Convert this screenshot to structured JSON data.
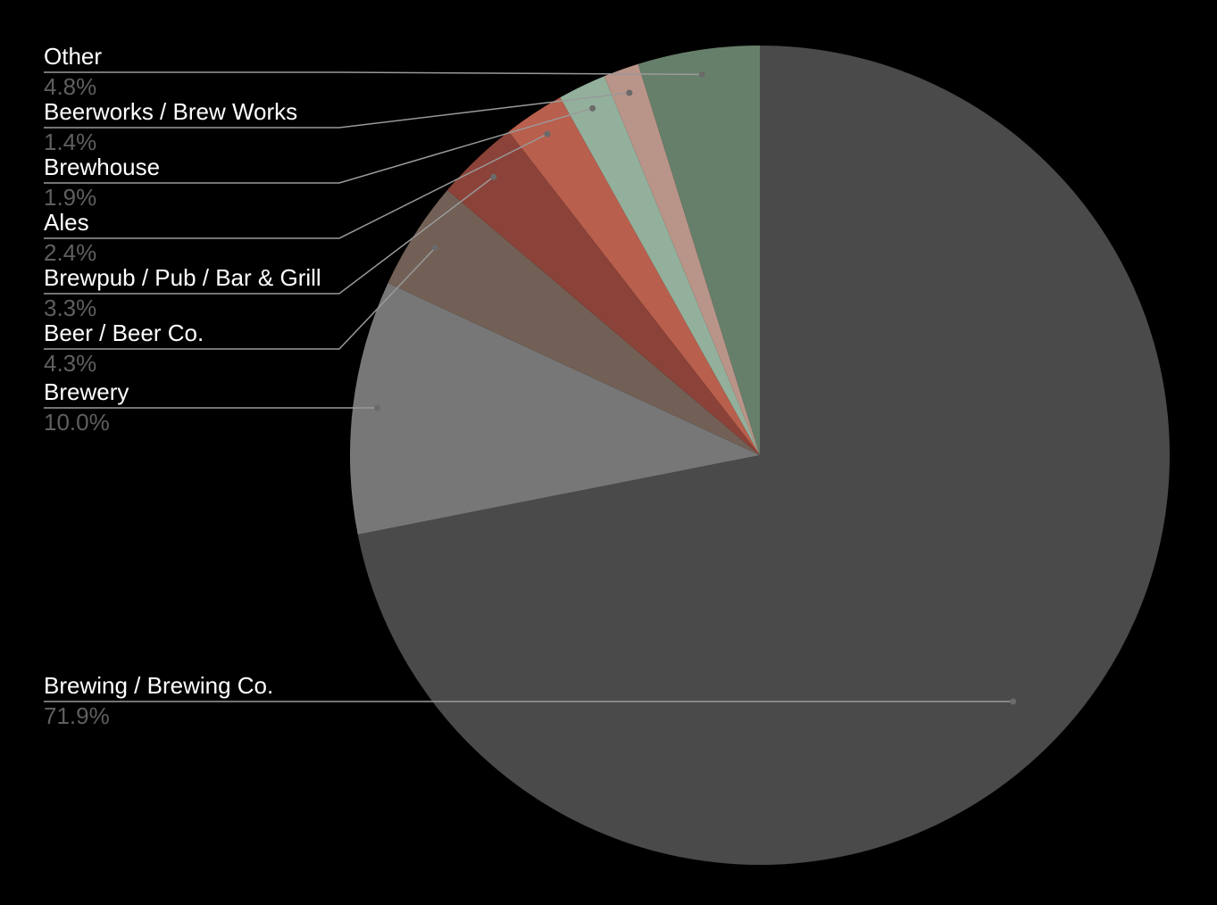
{
  "chart_data": {
    "type": "pie",
    "title": "",
    "slices": [
      {
        "label": "Brewing / Brewing Co.",
        "value": 71.9,
        "pct_text": "71.9%",
        "color": "#4a4a4a"
      },
      {
        "label": "Brewery",
        "value": 10.0,
        "pct_text": "10.0%",
        "color": "#777777"
      },
      {
        "label": "Beer / Beer Co.",
        "value": 4.3,
        "pct_text": "4.3%",
        "color": "#726056"
      },
      {
        "label": "Brewpub / Pub / Bar & Grill",
        "value": 3.3,
        "pct_text": "3.3%",
        "color": "#8b4238"
      },
      {
        "label": "Ales",
        "value": 2.4,
        "pct_text": "2.4%",
        "color": "#b85f4d"
      },
      {
        "label": "Brewhouse",
        "value": 1.9,
        "pct_text": "1.9%",
        "color": "#93b09c"
      },
      {
        "label": "Beerworks / Brew Works",
        "value": 1.4,
        "pct_text": "1.4%",
        "color": "#b99488"
      },
      {
        "label": "Other",
        "value": 4.8,
        "pct_text": "4.8%",
        "color": "#667f6a"
      }
    ],
    "legend": "none",
    "background": "#000000"
  }
}
